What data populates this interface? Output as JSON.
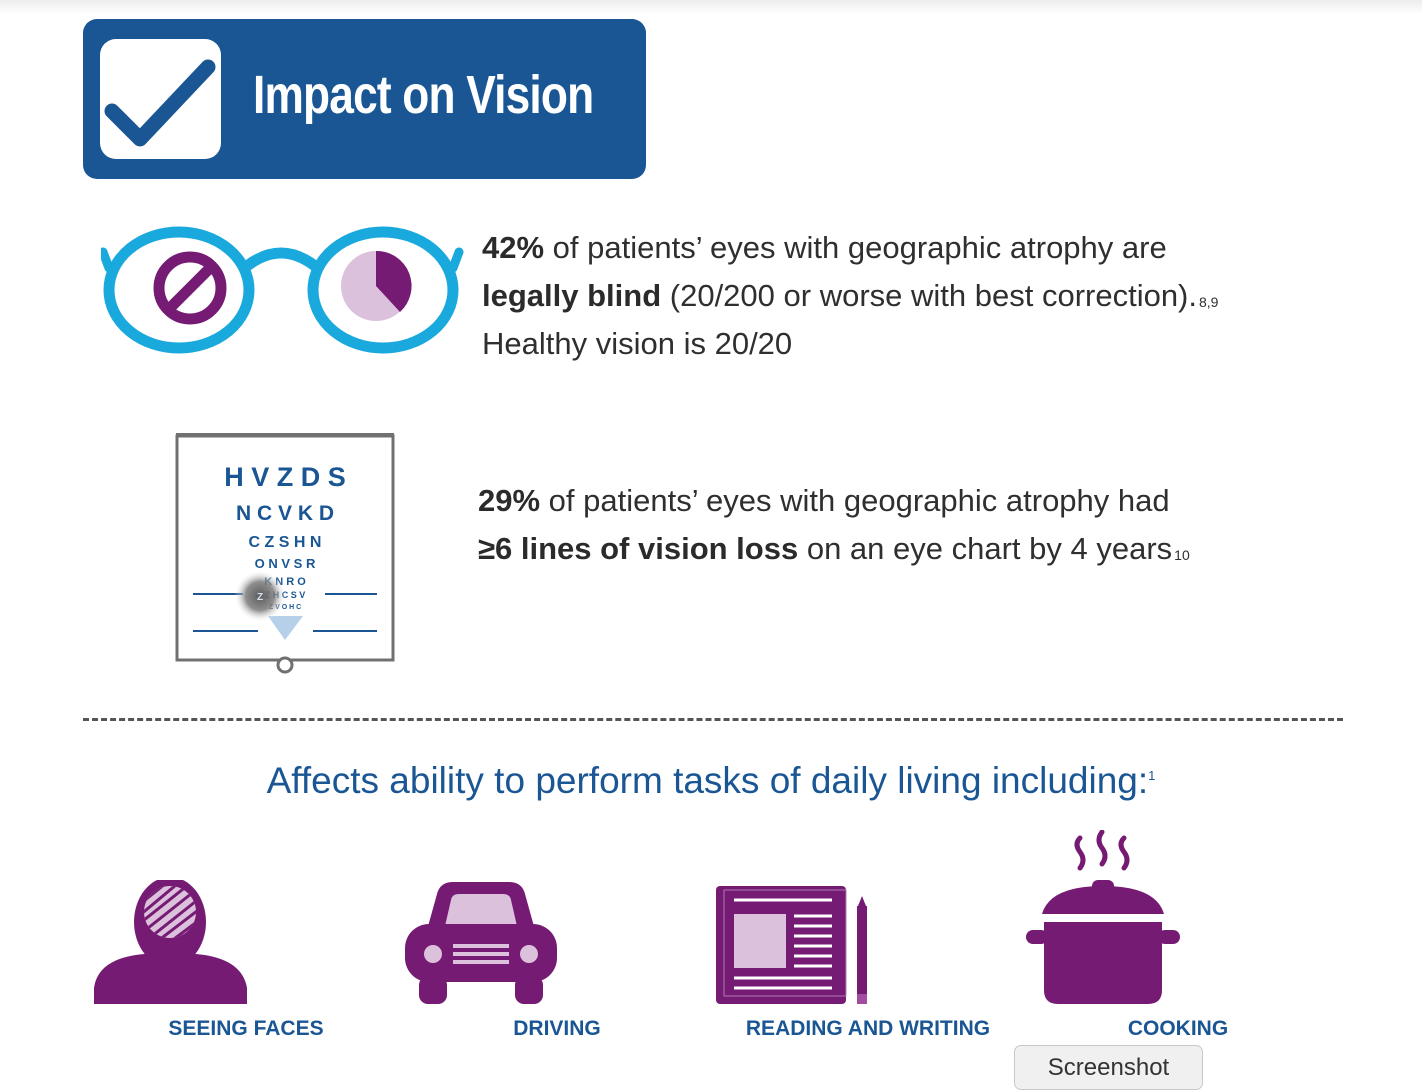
{
  "header": {
    "title": "Impact on Vision"
  },
  "stats": [
    {
      "pct": "42%",
      "text_a": " of patients’ eyes with geographic atrophy are",
      "bold_b": "legally blind",
      "text_c": " (20/200 or worse with best correction).",
      "ref": "8,9",
      "line3": "Healthy vision is 20/20"
    },
    {
      "pct": "29%",
      "text_a": " of patients’ eyes with geographic atrophy had",
      "bold_b": "≥6 lines of vision loss",
      "text_c": " on an eye chart by 4 years",
      "ref": "10"
    }
  ],
  "eye_chart": {
    "rows": [
      "H V Z D S",
      "N C V K D",
      "C Z S H N",
      "O N V S R",
      "K N R O",
      "Z H C S V",
      "Z V O H C"
    ],
    "blur_letter": "Z"
  },
  "daily": {
    "heading": "Affects ability to perform tasks of daily living including:",
    "ref": "1",
    "tasks": [
      {
        "label": "SEEING FACES",
        "icon": "face-icon"
      },
      {
        "label": "DRIVING",
        "icon": "car-icon"
      },
      {
        "label": "READING AND WRITING",
        "icon": "newspaper-pencil-icon"
      },
      {
        "label": "COOKING",
        "icon": "cooking-pot-icon"
      }
    ]
  },
  "overlay": {
    "screenshot_label": "Screenshot"
  },
  "colors": {
    "brand_blue": "#1a5694",
    "glasses_cyan": "#1aa9dd",
    "purple": "#751b74",
    "light_purple": "#dcc1dc"
  }
}
